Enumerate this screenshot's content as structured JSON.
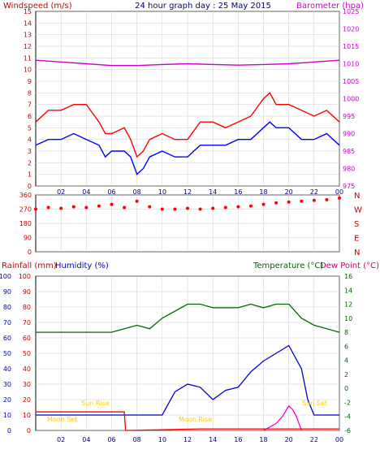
{
  "header": {
    "left_title": "Windspeed (m/s)",
    "center_title": "24 hour graph day : 25 May 2015",
    "right_title": "Barometer (hpa)"
  },
  "colors": {
    "gust": "#ff0000",
    "speed": "#0000ff",
    "barometer": "#cc00cc",
    "direction": "#ff0000",
    "rain": "#ff0000",
    "humidity": "#0000cc",
    "temperature": "#006600",
    "dewpoint": "#ff00cc",
    "sun": "#ffcc00",
    "grid": "#cccccc",
    "axis_wind": "#cc0000",
    "axis_baro": "#cc00cc",
    "axis_temp": "#006600",
    "axis_hum": "#0000cc"
  },
  "chart_data": [
    {
      "type": "line",
      "id": "wind",
      "title": "24 hour graph day : 25 May 2015",
      "ylabel": "Windspeed (m/s)",
      "y2label": "Barometer (hpa)",
      "ylim": [
        0,
        15
      ],
      "y2lim": [
        975,
        1025
      ],
      "xlim": [
        0,
        24
      ],
      "y_ticks": [
        "0",
        "1",
        "2",
        "3",
        "4",
        "5",
        "6",
        "7",
        "8",
        "9",
        "10",
        "11",
        "12",
        "13",
        "14",
        "15"
      ],
      "y2_ticks": [
        "975",
        "980",
        "985",
        "990",
        "995",
        "1000",
        "1005",
        "1010",
        "1015",
        "1020",
        "1025"
      ],
      "x_ticks": [
        "02",
        "04",
        "06",
        "08",
        "10",
        "12",
        "14",
        "16",
        "18",
        "20",
        "22",
        "00"
      ],
      "x_tick_values": [
        2,
        4,
        6,
        8,
        10,
        12,
        14,
        16,
        18,
        20,
        22,
        24
      ],
      "series": [
        {
          "key": "gust",
          "hours": [
            0,
            1,
            2,
            3,
            4,
            5,
            5.5,
            6,
            7,
            7.5,
            8,
            8.5,
            9,
            10,
            11,
            12,
            13,
            14,
            15,
            16,
            17,
            18,
            18.5,
            19,
            20,
            21,
            22,
            23,
            24
          ],
          "values": [
            5.5,
            6.5,
            6.5,
            7,
            7,
            5.5,
            4.5,
            4.5,
            5,
            4,
            2.5,
            3,
            4,
            4.5,
            4,
            4,
            5.5,
            5.5,
            5,
            5.5,
            6,
            7.5,
            8,
            7,
            7,
            6.5,
            6,
            6.5,
            5.5
          ]
        },
        {
          "key": "speed",
          "hours": [
            0,
            1,
            2,
            3,
            4,
            5,
            5.5,
            6,
            7,
            7.5,
            8,
            8.5,
            9,
            10,
            11,
            12,
            13,
            14,
            15,
            16,
            17,
            18,
            18.5,
            19,
            20,
            21,
            22,
            23,
            24
          ],
          "values": [
            3.5,
            4,
            4,
            4.5,
            4,
            3.5,
            2.5,
            3,
            3,
            2.5,
            1,
            1.5,
            2.5,
            3,
            2.5,
            2.5,
            3.5,
            3.5,
            3.5,
            4,
            4,
            5,
            5.5,
            5,
            5,
            4,
            4,
            4.5,
            3.5
          ]
        },
        {
          "key": "barometer",
          "axis": "y2",
          "hours": [
            0,
            2,
            4,
            6,
            8,
            10,
            12,
            14,
            16,
            18,
            20,
            22,
            24
          ],
          "values": [
            1011,
            1010.5,
            1010,
            1009.5,
            1009.5,
            1009.8,
            1010,
            1009.8,
            1009.6,
            1009.8,
            1010,
            1010.5,
            1011
          ]
        }
      ]
    },
    {
      "type": "scatter",
      "id": "direction",
      "y_ticks": [
        "0",
        "90",
        "180",
        "270",
        "360"
      ],
      "compass": [
        "N",
        "W",
        "S",
        "E",
        "N"
      ],
      "ylim": [
        0,
        360
      ],
      "xlim": [
        0,
        24
      ],
      "points": {
        "hours": [
          0,
          1,
          2,
          3,
          4,
          5,
          6,
          7,
          8,
          9,
          10,
          11,
          12,
          13,
          14,
          15,
          16,
          17,
          18,
          19,
          20,
          21,
          22,
          23,
          24
        ],
        "values": [
          270,
          280,
          275,
          285,
          280,
          290,
          300,
          280,
          320,
          285,
          270,
          270,
          275,
          270,
          275,
          280,
          285,
          290,
          300,
          310,
          315,
          320,
          325,
          330,
          340
        ]
      }
    },
    {
      "type": "line",
      "id": "rain",
      "ylabel": "Rainfall (mm)",
      "ylabel2": "Humidity (%)",
      "y2label": "Temperature (°C)",
      "y3label": "Dew Point (°C)",
      "ylim": [
        0,
        100
      ],
      "y2lim": [
        -6,
        16
      ],
      "xlim": [
        0,
        24
      ],
      "y_ticks": [
        "0",
        "10",
        "20",
        "30",
        "40",
        "50",
        "60",
        "70",
        "80",
        "90",
        "100"
      ],
      "y2_ticks": [
        "-6",
        "-4",
        "-2",
        "0",
        "2",
        "4",
        "6",
        "8",
        "10",
        "12",
        "14",
        "16"
      ],
      "x_ticks": [
        "02",
        "04",
        "06",
        "08",
        "10",
        "12",
        "14",
        "16",
        "18",
        "20",
        "22",
        "00"
      ],
      "annotations": [
        "Moon Set",
        "Sun Rise",
        "Moon Rise",
        "Sun Set"
      ],
      "series": [
        {
          "key": "temperature",
          "axis": "y2",
          "hours": [
            0,
            2,
            4,
            6,
            7,
            8,
            9,
            10,
            11,
            12,
            13,
            14,
            15,
            16,
            17,
            18,
            19,
            20,
            21,
            22,
            23,
            24
          ],
          "values": [
            8,
            8,
            8,
            8,
            8.5,
            9,
            8.5,
            10,
            11,
            12,
            12,
            11.5,
            11.5,
            11.5,
            12,
            11.5,
            12,
            12,
            10,
            9,
            8.5,
            8
          ]
        },
        {
          "key": "dewpoint",
          "axis": "y2",
          "hours": [
            18,
            18.5,
            19,
            19.5,
            20,
            20.3,
            20.6,
            21
          ],
          "values": [
            -6,
            -5.5,
            -5,
            -4,
            -2.5,
            -3,
            -4,
            -6
          ]
        },
        {
          "key": "humidity",
          "hours": [
            0,
            10,
            11,
            12,
            13,
            14,
            15,
            16,
            17,
            18,
            19,
            20,
            21,
            21.5,
            22,
            24
          ],
          "values": [
            10,
            10,
            25,
            30,
            28,
            20,
            26,
            28,
            38,
            45,
            50,
            55,
            40,
            20,
            10,
            10
          ]
        },
        {
          "key": "rain",
          "hours": [
            0,
            7,
            7.1,
            13,
            14,
            18,
            24
          ],
          "values": [
            12,
            12,
            0,
            1,
            1,
            1,
            1
          ]
        }
      ]
    }
  ]
}
